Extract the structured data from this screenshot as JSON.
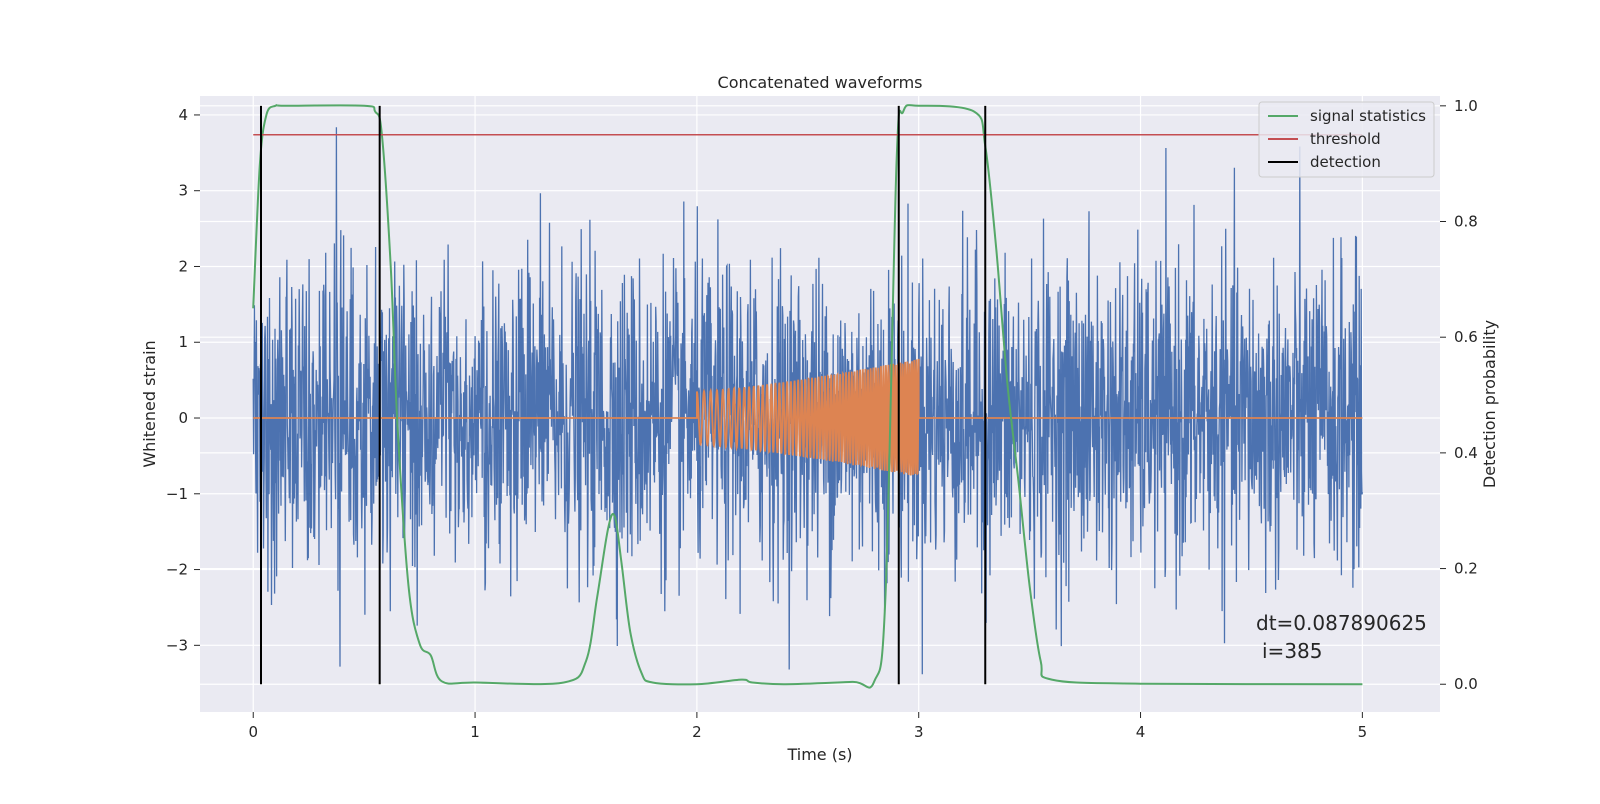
{
  "chart_data": {
    "type": "line",
    "title": "Concatenated waveforms",
    "xlabel": "Time (s)",
    "ylabel": "Whitened strain",
    "y2label": "Detection probability",
    "xlim": [
      -0.24,
      5.35
    ],
    "ylim": [
      -3.88,
      4.25
    ],
    "y2lim": [
      -0.048,
      1.017
    ],
    "xticks": [
      "0",
      "1",
      "2",
      "3",
      "4",
      "5"
    ],
    "yticks": [
      "4",
      "3",
      "2",
      "1",
      "0",
      "−1",
      "−2",
      "−3"
    ],
    "y2ticks": [
      "1.0",
      "0.8",
      "0.6",
      "0.4",
      "0.2",
      "0.0"
    ],
    "grid": true,
    "legend_position": "top-right",
    "legend": [
      "signal statistics",
      "threshold",
      "detection"
    ],
    "colors": {
      "strain": "#4c72b0",
      "injection": "#dd8452",
      "signal_statistics": "#55a868",
      "threshold": "#c44e52",
      "detection": "#000000",
      "background": "#eaeaf2",
      "grid": "#ffffff"
    },
    "series": [
      {
        "name": "whitened strain (noise)",
        "axis": "left",
        "x_range": [
          0,
          5
        ],
        "approx_min": -3.5,
        "approx_max": 3.9,
        "approx_std": 1.0
      },
      {
        "name": "injected waveform",
        "axis": "left",
        "x": [
          0,
          2.0,
          2.0,
          2.5,
          3.0,
          3.0,
          5.0
        ],
        "amplitude": [
          0,
          0,
          0.35,
          0.52,
          0.78,
          0,
          0
        ],
        "chirp_start_freq_hz": 30,
        "chirp_end_freq_hz": 100
      },
      {
        "name": "signal statistics",
        "axis": "right",
        "x": [
          0.0,
          0.03,
          0.06,
          0.1,
          0.15,
          0.5,
          0.55,
          0.58,
          0.62,
          0.65,
          0.7,
          0.75,
          0.8,
          0.85,
          1.0,
          1.4,
          1.5,
          1.55,
          1.6,
          1.63,
          1.66,
          1.7,
          1.75,
          1.8,
          2.0,
          2.2,
          2.25,
          2.4,
          2.7,
          2.8,
          2.85,
          2.9,
          2.93,
          3.0,
          3.25,
          3.3,
          3.35,
          3.4,
          3.45,
          3.5,
          3.55,
          3.6,
          4.0,
          5.0
        ],
        "y": [
          0.65,
          0.9,
          0.985,
          1.0,
          1.0,
          1.0,
          0.99,
          0.95,
          0.72,
          0.45,
          0.17,
          0.07,
          0.05,
          0.005,
          0.003,
          0.003,
          0.04,
          0.15,
          0.27,
          0.29,
          0.21,
          0.09,
          0.02,
          0.003,
          0.0,
          0.008,
          0.003,
          0.0,
          0.004,
          0.005,
          0.15,
          0.9,
          0.99,
          1.0,
          0.99,
          0.93,
          0.75,
          0.52,
          0.35,
          0.17,
          0.04,
          0.008,
          0.001,
          0.0
        ]
      },
      {
        "name": "threshold",
        "axis": "right",
        "x": [
          0,
          5
        ],
        "y": [
          0.95,
          0.95
        ]
      },
      {
        "name": "detection",
        "axis": "right",
        "type": "vlines",
        "x": [
          0.035,
          0.57,
          2.91,
          3.3
        ],
        "ymin": 0.0,
        "ymax": 1.0
      }
    ],
    "annotations": [
      "dt=0.087890625",
      "i=385"
    ]
  }
}
